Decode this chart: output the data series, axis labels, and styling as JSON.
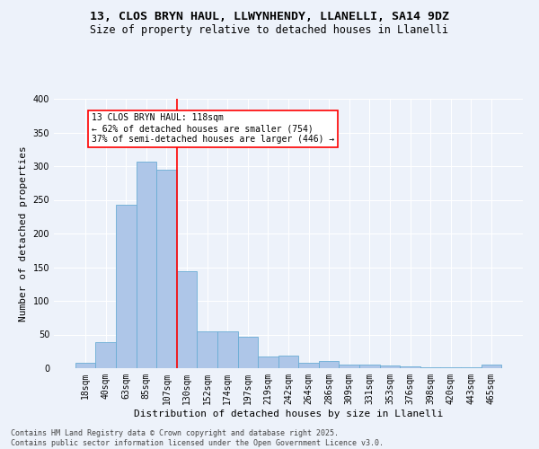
{
  "title1": "13, CLOS BRYN HAUL, LLWYNHENDY, LLANELLI, SA14 9DZ",
  "title2": "Size of property relative to detached houses in Llanelli",
  "xlabel": "Distribution of detached houses by size in Llanelli",
  "ylabel": "Number of detached properties",
  "footnote": "Contains HM Land Registry data © Crown copyright and database right 2025.\nContains public sector information licensed under the Open Government Licence v3.0.",
  "bar_labels": [
    "18sqm",
    "40sqm",
    "63sqm",
    "85sqm",
    "107sqm",
    "130sqm",
    "152sqm",
    "174sqm",
    "197sqm",
    "219sqm",
    "242sqm",
    "264sqm",
    "286sqm",
    "309sqm",
    "331sqm",
    "353sqm",
    "376sqm",
    "398sqm",
    "420sqm",
    "443sqm",
    "465sqm"
  ],
  "bar_values": [
    8,
    39,
    243,
    307,
    295,
    144,
    55,
    55,
    47,
    18,
    19,
    8,
    11,
    5,
    5,
    4,
    3,
    2,
    1,
    1,
    5
  ],
  "bar_color": "#aec6e8",
  "bar_edge_color": "#6aadd5",
  "vline_x": 4.5,
  "vline_color": "red",
  "annotation_text": "13 CLOS BRYN HAUL: 118sqm\n← 62% of detached houses are smaller (754)\n37% of semi-detached houses are larger (446) →",
  "annotation_box_color": "white",
  "annotation_box_edge_color": "red",
  "bg_color": "#edf2fa",
  "plot_bg_color": "#edf2fa",
  "grid_color": "white",
  "ylim": [
    0,
    400
  ],
  "yticks": [
    0,
    50,
    100,
    150,
    200,
    250,
    300,
    350,
    400
  ],
  "title1_fontsize": 9.5,
  "title2_fontsize": 8.5,
  "xlabel_fontsize": 8,
  "ylabel_fontsize": 8,
  "tick_fontsize": 7,
  "annotation_fontsize": 7,
  "footnote_fontsize": 6
}
